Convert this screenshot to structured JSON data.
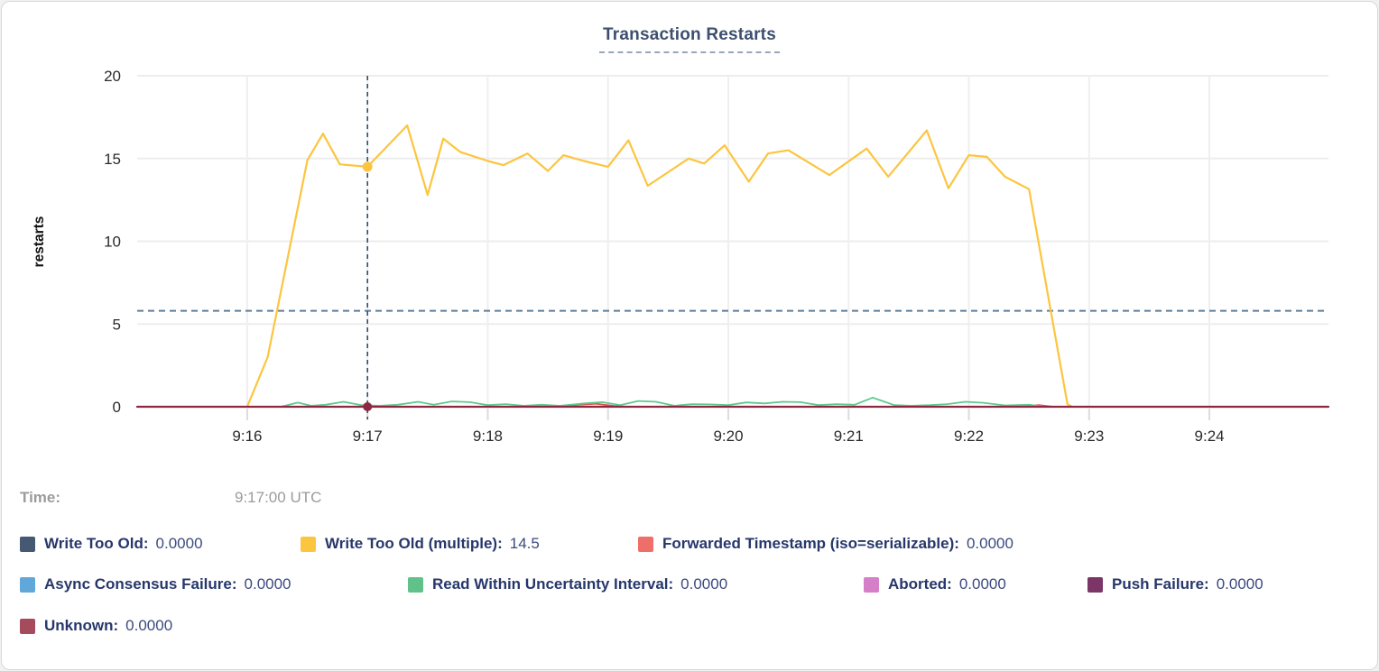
{
  "header": {
    "title": "Transaction Restarts"
  },
  "tooltip": {
    "time_label": "Time:",
    "time_value": "9:17:00 UTC"
  },
  "chart_data": {
    "type": "line",
    "title": "Transaction Restarts",
    "xlabel": "",
    "ylabel": "restarts",
    "ylim": [
      0,
      20
    ],
    "xlim": [
      15.085,
      24.99
    ],
    "grid": true,
    "yticks": [
      0,
      5,
      10,
      15,
      20
    ],
    "xticks": [
      {
        "t": 16,
        "label": "9:16"
      },
      {
        "t": 17,
        "label": "9:17"
      },
      {
        "t": 18,
        "label": "9:18"
      },
      {
        "t": 19,
        "label": "9:19"
      },
      {
        "t": 20,
        "label": "9:20"
      },
      {
        "t": 21,
        "label": "9:21"
      },
      {
        "t": 22,
        "label": "9:22"
      },
      {
        "t": 23,
        "label": "9:23"
      },
      {
        "t": 24,
        "label": "9:24"
      }
    ],
    "threshold": {
      "value": 5.8,
      "color": "#5d7e9e"
    },
    "crosshair": {
      "t": 17,
      "color": "#33506b"
    },
    "hover": {
      "time": "9:17:00 UTC",
      "entries": [
        {
          "series": "Write Too Old (multiple)",
          "value": 14.5,
          "r": 5.5
        },
        {
          "series": "Unknown",
          "value": 0,
          "r": 5
        }
      ]
    },
    "series": [
      {
        "name": "Write Too Old (multiple)",
        "color": "#fcc53f",
        "width": 2.2,
        "points": [
          [
            16.0,
            0
          ],
          [
            16.17,
            3.0
          ],
          [
            16.5,
            14.9
          ],
          [
            16.63,
            16.5
          ],
          [
            16.77,
            14.65
          ],
          [
            17.0,
            14.5
          ],
          [
            17.33,
            17.0
          ],
          [
            17.5,
            12.8
          ],
          [
            17.63,
            16.2
          ],
          [
            17.77,
            15.4
          ],
          [
            18.0,
            14.85
          ],
          [
            18.13,
            14.6
          ],
          [
            18.33,
            15.3
          ],
          [
            18.5,
            14.25
          ],
          [
            18.63,
            15.2
          ],
          [
            18.8,
            14.85
          ],
          [
            19.0,
            14.5
          ],
          [
            19.17,
            16.1
          ],
          [
            19.33,
            13.35
          ],
          [
            19.67,
            15.0
          ],
          [
            19.8,
            14.7
          ],
          [
            19.97,
            15.8
          ],
          [
            20.17,
            13.6
          ],
          [
            20.33,
            15.3
          ],
          [
            20.5,
            15.5
          ],
          [
            20.84,
            14.0
          ],
          [
            21.15,
            15.6
          ],
          [
            21.33,
            13.9
          ],
          [
            21.65,
            16.7
          ],
          [
            21.83,
            13.2
          ],
          [
            22.0,
            15.2
          ],
          [
            22.15,
            15.1
          ],
          [
            22.3,
            13.9
          ],
          [
            22.5,
            13.15
          ],
          [
            22.82,
            0.15
          ],
          [
            22.86,
            0
          ]
        ]
      },
      {
        "name": "Forwarded Timestamp (iso=serializable)",
        "color": "#dd564f",
        "width": 1.8,
        "points": [
          [
            15.085,
            0
          ],
          [
            18.6,
            0
          ],
          [
            18.75,
            0.12
          ],
          [
            18.9,
            0.18
          ],
          [
            19.05,
            0.05
          ],
          [
            19.15,
            0
          ],
          [
            22.45,
            0
          ],
          [
            22.58,
            0.1
          ],
          [
            22.7,
            0
          ],
          [
            24.99,
            0
          ]
        ]
      },
      {
        "name": "Read Within Uncertainty Interval",
        "color": "#5ec98c",
        "width": 1.8,
        "points": [
          [
            16.28,
            0
          ],
          [
            16.42,
            0.25
          ],
          [
            16.53,
            0.06
          ],
          [
            16.65,
            0.12
          ],
          [
            16.8,
            0.3
          ],
          [
            16.95,
            0.1
          ],
          [
            17.1,
            0.06
          ],
          [
            17.25,
            0.12
          ],
          [
            17.42,
            0.3
          ],
          [
            17.55,
            0.12
          ],
          [
            17.7,
            0.32
          ],
          [
            17.85,
            0.28
          ],
          [
            18.0,
            0.1
          ],
          [
            18.15,
            0.16
          ],
          [
            18.3,
            0.06
          ],
          [
            18.45,
            0.12
          ],
          [
            18.6,
            0.06
          ],
          [
            18.8,
            0.2
          ],
          [
            18.95,
            0.28
          ],
          [
            19.1,
            0.1
          ],
          [
            19.25,
            0.35
          ],
          [
            19.4,
            0.3
          ],
          [
            19.55,
            0.06
          ],
          [
            19.7,
            0.16
          ],
          [
            19.85,
            0.14
          ],
          [
            20.0,
            0.1
          ],
          [
            20.15,
            0.26
          ],
          [
            20.3,
            0.2
          ],
          [
            20.45,
            0.3
          ],
          [
            20.6,
            0.28
          ],
          [
            20.75,
            0.1
          ],
          [
            20.9,
            0.16
          ],
          [
            21.05,
            0.12
          ],
          [
            21.2,
            0.55
          ],
          [
            21.38,
            0.1
          ],
          [
            21.52,
            0.06
          ],
          [
            21.68,
            0.1
          ],
          [
            21.82,
            0.16
          ],
          [
            21.97,
            0.3
          ],
          [
            22.12,
            0.24
          ],
          [
            22.3,
            0.08
          ],
          [
            22.5,
            0.12
          ],
          [
            22.62,
            0.02
          ],
          [
            22.7,
            0
          ]
        ]
      },
      {
        "name": "Unknown",
        "color": "#8e2742",
        "width": 2.2,
        "points": [
          [
            15.085,
            0
          ],
          [
            24.99,
            0
          ]
        ]
      }
    ]
  },
  "legend": {
    "rows": [
      [
        {
          "label": "Write Too Old:",
          "value": "0.0000",
          "color": "#475872"
        },
        {
          "label": "Write Too Old (multiple):",
          "value": "14.5",
          "color": "#fcc53f"
        },
        {
          "label": "Forwarded Timestamp (iso=serializable):",
          "value": "0.0000",
          "color": "#ee6f6a"
        }
      ],
      [
        {
          "label": "Async Consensus Failure:",
          "value": "0.0000",
          "color": "#61a7da"
        },
        {
          "label": "Read Within Uncertainty Interval:",
          "value": "0.0000",
          "color": "#60c189"
        },
        {
          "label": "Aborted:",
          "value": "0.0000",
          "color": "#d47fc7"
        },
        {
          "label": "Push Failure:",
          "value": "0.0000",
          "color": "#7b3566"
        }
      ],
      [
        {
          "label": "Unknown:",
          "value": "0.0000",
          "color": "#a64a5d"
        }
      ]
    ]
  }
}
